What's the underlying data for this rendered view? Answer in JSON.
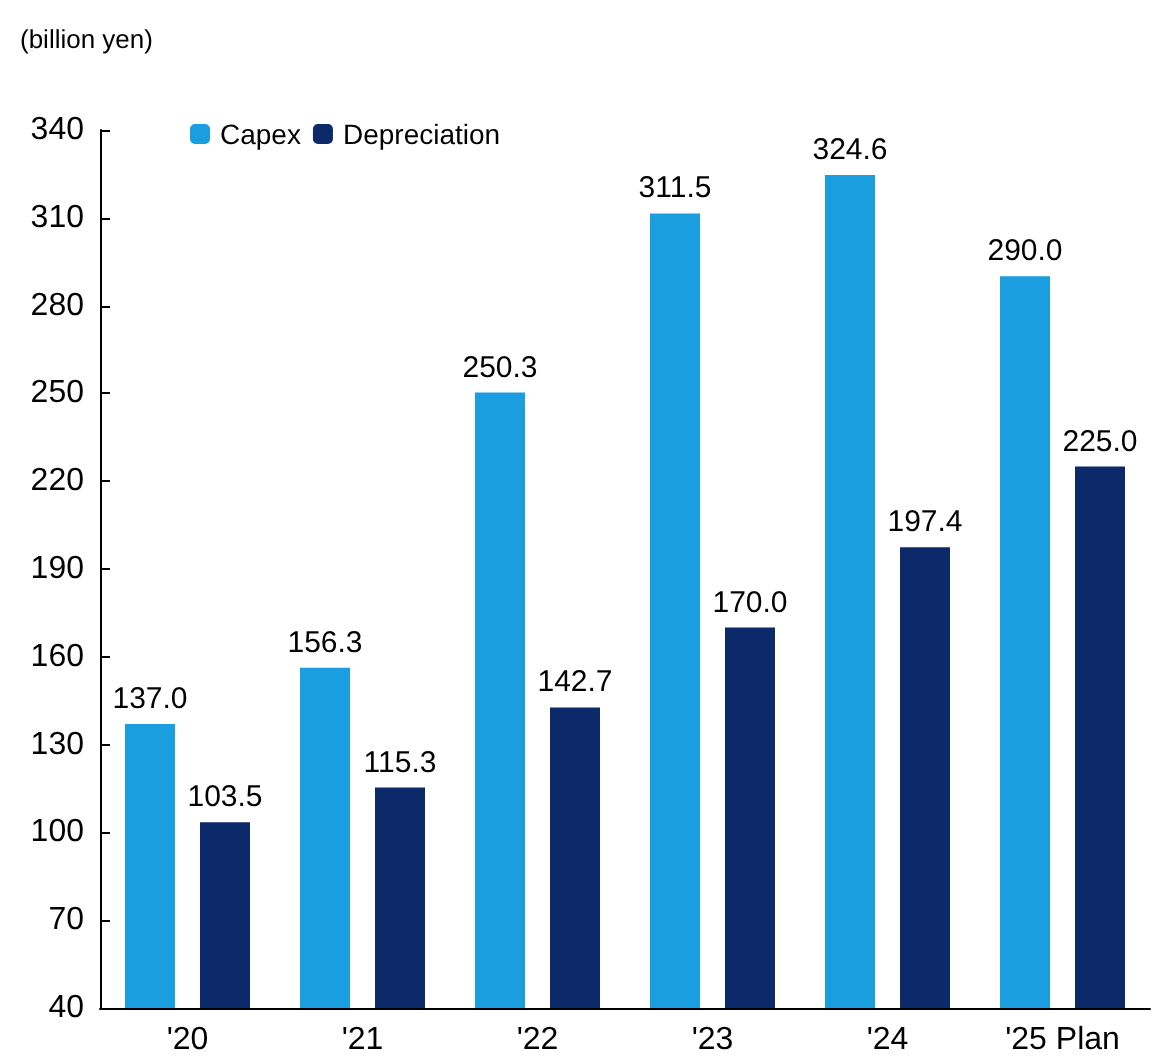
{
  "chart_data": {
    "type": "bar",
    "ylabel": "(billion yen)",
    "categories": [
      "'20",
      "'21",
      "'22",
      "'23",
      "'24",
      "'25 Plan"
    ],
    "series": [
      {
        "name": "Capex",
        "color": "#1b9ee0",
        "values": [
          137.0,
          156.3,
          250.3,
          311.5,
          324.6,
          290.0
        ],
        "value_labels": [
          "137.0",
          "156.3",
          "250.3",
          "311.5",
          "324.6",
          "290.0"
        ]
      },
      {
        "name": "Depreciation",
        "color": "#0c2a6a",
        "values": [
          103.5,
          115.3,
          142.7,
          170.0,
          197.4,
          225.0
        ],
        "value_labels": [
          "103.5",
          "115.3",
          "142.7",
          "170.0",
          "197.4",
          "225.0"
        ]
      }
    ],
    "ylim": [
      40,
      340
    ],
    "yticks": [
      40,
      70,
      100,
      130,
      160,
      190,
      220,
      250,
      280,
      310,
      340
    ],
    "grid": false,
    "legend": "top left"
  }
}
